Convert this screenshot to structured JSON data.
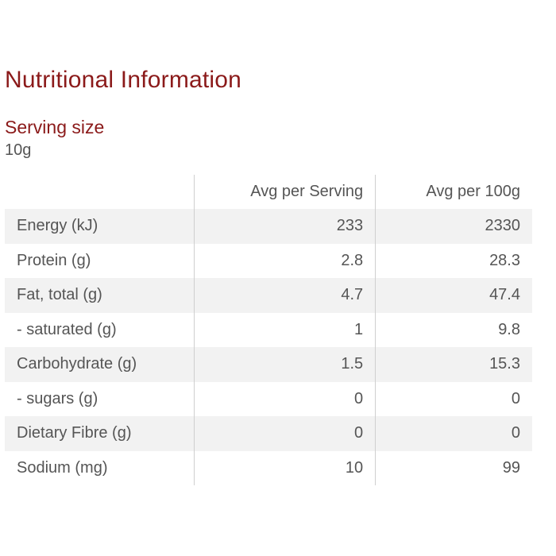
{
  "page": {
    "title": "Nutritional Information"
  },
  "serving": {
    "label": "Serving size",
    "value": "10g"
  },
  "table": {
    "headers": [
      "",
      "Avg per Serving",
      "Avg per 100g"
    ],
    "rows": [
      {
        "name": "Energy (kJ)",
        "per_serving": "233",
        "per_100g": "2330"
      },
      {
        "name": "Protein (g)",
        "per_serving": "2.8",
        "per_100g": "28.3"
      },
      {
        "name": "Fat, total (g)",
        "per_serving": "4.7",
        "per_100g": "47.4"
      },
      {
        "name": "- saturated (g)",
        "per_serving": "1",
        "per_100g": "9.8"
      },
      {
        "name": "Carbohydrate (g)",
        "per_serving": "1.5",
        "per_100g": "15.3"
      },
      {
        "name": "- sugars (g)",
        "per_serving": "0",
        "per_100g": "0"
      },
      {
        "name": "Dietary Fibre (g)",
        "per_serving": "0",
        "per_100g": "0"
      },
      {
        "name": "Sodium (mg)",
        "per_serving": "10",
        "per_100g": "99"
      }
    ]
  },
  "colors": {
    "accent": "#8b1a1a",
    "text": "#555555",
    "row_shade": "#f2f2f2",
    "divider": "#cfcfcf"
  }
}
